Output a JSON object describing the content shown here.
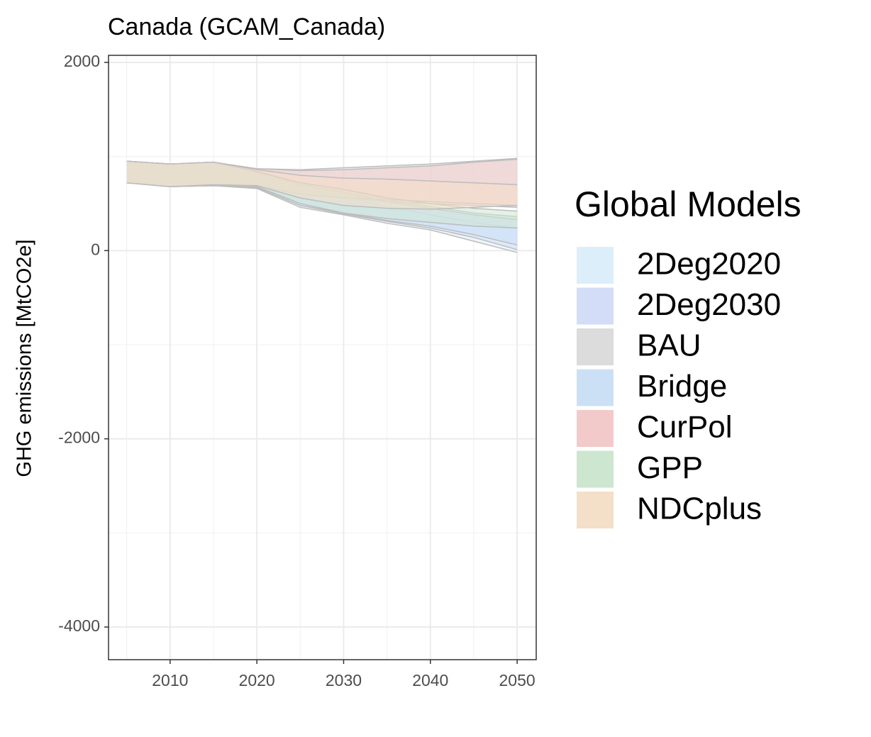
{
  "chart_data": {
    "type": "ribbon",
    "title": "Canada (GCAM_Canada)",
    "y_label": "GHG emissions [MtCO2e]",
    "legend_title": "Global Models",
    "x": [
      2005,
      2010,
      2015,
      2020,
      2025,
      2030,
      2035,
      2040,
      2045,
      2050
    ],
    "xlim": [
      2002.9,
      2052.2
    ],
    "xticks": [
      2010,
      2020,
      2030,
      2040,
      2050
    ],
    "ylim": [
      -4347,
      2075
    ],
    "yticks": [
      -4000,
      -2000,
      0,
      2000
    ],
    "grid": true,
    "series": [
      {
        "name": "2Deg2020",
        "color": "#dceefa",
        "lower": [
          720,
          680,
          690,
          660,
          460,
          380,
          290,
          220,
          100,
          -20
        ],
        "upper": [
          950,
          920,
          940,
          830,
          680,
          580,
          470,
          380,
          300,
          240
        ]
      },
      {
        "name": "2Deg2030",
        "color": "#d4ddf7",
        "lower": [
          720,
          680,
          690,
          670,
          480,
          390,
          310,
          240,
          140,
          10
        ],
        "upper": [
          950,
          920,
          940,
          840,
          700,
          620,
          540,
          470,
          400,
          360
        ]
      },
      {
        "name": "BAU",
        "color": "#dcdcdc",
        "lower": [
          720,
          680,
          700,
          690,
          600,
          560,
          520,
          500,
          480,
          460
        ],
        "upper": [
          950,
          920,
          940,
          870,
          860,
          880,
          900,
          920,
          950,
          980
        ]
      },
      {
        "name": "Bridge",
        "color": "#cce0f5",
        "lower": [
          720,
          680,
          690,
          670,
          480,
          400,
          320,
          260,
          170,
          60
        ],
        "upper": [
          950,
          920,
          940,
          840,
          700,
          620,
          520,
          450,
          380,
          330
        ]
      },
      {
        "name": "CurPol",
        "color": "#f2caca",
        "lower": [
          720,
          680,
          700,
          690,
          600,
          560,
          540,
          520,
          500,
          480
        ],
        "upper": [
          950,
          920,
          940,
          870,
          850,
          860,
          880,
          900,
          940,
          970
        ]
      },
      {
        "name": "GPP",
        "color": "#cde6d0",
        "lower": [
          720,
          680,
          690,
          680,
          500,
          400,
          340,
          300,
          260,
          240
        ],
        "upper": [
          950,
          920,
          940,
          840,
          720,
          650,
          560,
          500,
          450,
          420
        ]
      },
      {
        "name": "NDCplus",
        "color": "#f4dfc8",
        "lower": [
          720,
          680,
          700,
          690,
          560,
          480,
          450,
          440,
          460,
          480
        ],
        "upper": [
          950,
          920,
          940,
          860,
          800,
          770,
          760,
          740,
          720,
          700
        ]
      }
    ]
  }
}
